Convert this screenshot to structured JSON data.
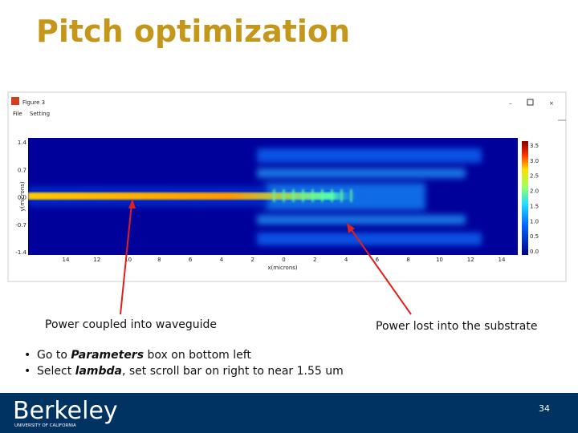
{
  "title": "Pitch optimization",
  "window": {
    "title": "Figure 3",
    "menu": [
      "File",
      "Setting"
    ]
  },
  "figure": {
    "ylabel": "y(microns)",
    "yticks": [
      "1.4",
      "0.7",
      "0.0",
      "-0.7",
      "-1.4"
    ],
    "xlabel": "x(microns)",
    "xticks": [
      "14",
      "12",
      "10",
      "8",
      "6",
      "4",
      "2",
      "0",
      "2",
      "4",
      "6",
      "8",
      "10",
      "12",
      "14"
    ],
    "colorbar_ticks": [
      "3.5",
      "3.0",
      "2.5",
      "2.0",
      "1.5",
      "1.0",
      "0.5",
      "0.0"
    ]
  },
  "annotations": [
    "Power coupled into waveguide",
    "Power lost into the substrate"
  ],
  "bullets": [
    [
      {
        "text": "Go to "
      },
      {
        "text": "Parameters",
        "style": "bold-italic"
      },
      {
        "text": " box on bottom left"
      }
    ],
    [
      {
        "text": "Select "
      },
      {
        "text": "lambda",
        "style": "bold-italic"
      },
      {
        "text": ", set scroll bar on right to near 1.55 um"
      }
    ]
  ],
  "footer": {
    "logo": "Berkeley",
    "logo_sub": "UNIVERSITY OF CALIFORNIA",
    "page": "34"
  }
}
